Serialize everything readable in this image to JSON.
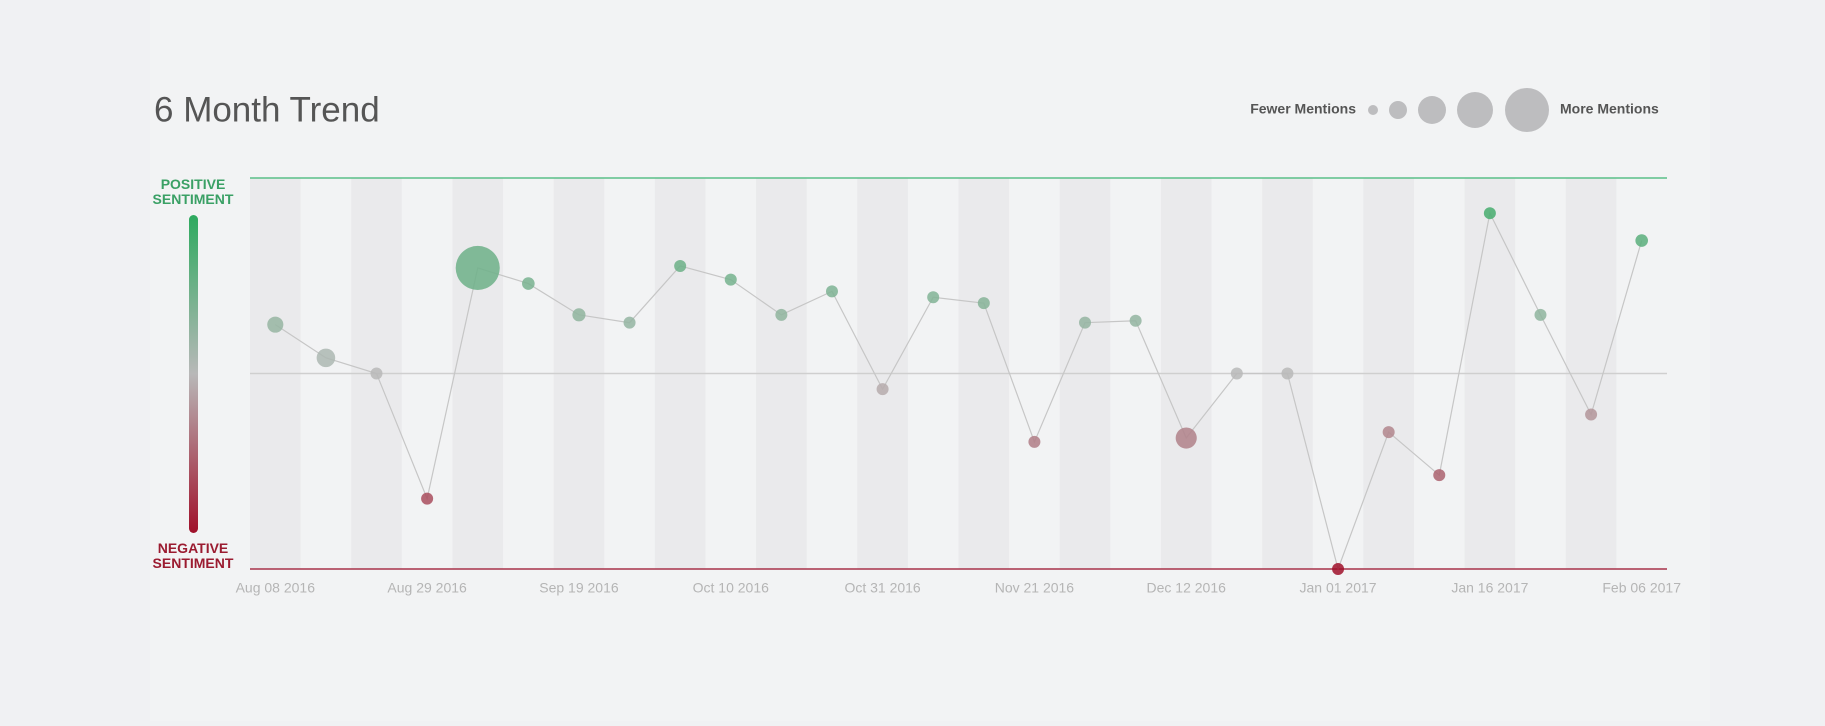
{
  "chart_data": {
    "type": "bubble-line",
    "title": "6 Month Trend",
    "legend_small_label": "Fewer Mentions",
    "legend_large_label": "More Mentions",
    "positive_label": "POSITIVE SENTIMENT",
    "negative_label": "NEGATIVE SENTIMENT",
    "categories": [
      "Aug 08 2016",
      null,
      null,
      "Aug 29 2016",
      null,
      null,
      "Sep 19 2016",
      null,
      null,
      "Oct 10 2016",
      null,
      null,
      "Oct 31 2016",
      null,
      null,
      "Nov 21 2016",
      null,
      null,
      "Dec 12 2016",
      null,
      null,
      "Jan 01 2017",
      null,
      null,
      "Jan 16 2017",
      null,
      null,
      "Feb 06 2017"
    ],
    "values": [
      0.25,
      0.08,
      0.0,
      -0.64,
      0.54,
      0.46,
      0.3,
      0.26,
      0.55,
      0.48,
      0.3,
      0.42,
      -0.08,
      0.39,
      0.36,
      -0.35,
      0.26,
      0.27,
      -0.33,
      0.0,
      0.0,
      -1.0,
      -0.3,
      -0.52,
      0.82,
      0.3,
      -0.21,
      0.68
    ],
    "mentions": [
      18,
      24,
      10,
      10,
      135,
      11,
      12,
      10,
      10,
      10,
      10,
      10,
      10,
      10,
      10,
      10,
      10,
      10,
      31,
      10,
      10,
      10,
      10,
      10,
      10,
      10,
      10,
      11
    ],
    "ylim": [
      -1,
      1
    ],
    "positive_color": "#2eaa5f",
    "neutral_color": "#b8b8b8",
    "negative_color": "#a0102a"
  }
}
